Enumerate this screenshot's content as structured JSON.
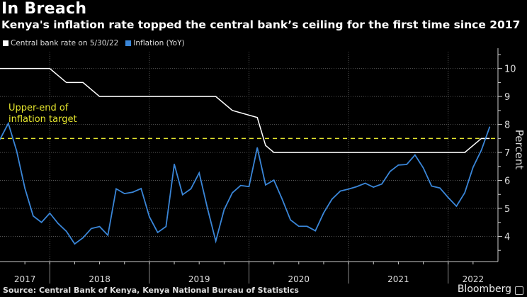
{
  "title": "In Breach",
  "subtitle": "Kenya's inflation rate topped the central bank’s ceiling for the first time since 2017",
  "source": "Source: Central Bank of Kenya, Kenya National Bureau of Statistics",
  "brand": "Bloomberg",
  "chart_data": {
    "type": "line",
    "title": "In Breach",
    "ylabel": "Percent",
    "ylim": [
      3.1,
      10.6
    ],
    "yticks": [
      4,
      5,
      6,
      7,
      8,
      9,
      10
    ],
    "xlim": [
      "2017-07",
      "2022-07"
    ],
    "xtick_labels": [
      "2017",
      "2018",
      "2019",
      "2020",
      "2021",
      "2022"
    ],
    "grid": true,
    "legend_position": "top-left",
    "annotation": {
      "text_line1": "Upper-end of",
      "text_line2": "inflation target",
      "value": 7.5,
      "color": "#e6e62e"
    },
    "series": [
      {
        "name": "Central bank rate on 5/30/22",
        "color": "#ffffff",
        "points": [
          [
            "2017-07",
            10
          ],
          [
            "2018-01",
            10
          ],
          [
            "2018-03",
            9.5
          ],
          [
            "2018-05",
            9.5
          ],
          [
            "2018-07",
            9.0
          ],
          [
            "2019-09",
            9.0
          ],
          [
            "2019-11",
            8.5
          ],
          [
            "2020-02",
            8.25
          ],
          [
            "2020-03",
            7.25
          ],
          [
            "2020-04",
            7.0
          ],
          [
            "2022-03",
            7.0
          ],
          [
            "2022-05",
            7.5
          ],
          [
            "2022-06",
            7.5
          ]
        ]
      },
      {
        "name": "Inflation (YoY)",
        "color": "#3a86d8",
        "start": "2017-07",
        "values": [
          7.47,
          8.04,
          7.06,
          5.72,
          4.73,
          4.5,
          4.83,
          4.46,
          4.18,
          3.73,
          3.95,
          4.28,
          4.35,
          4.04,
          5.7,
          5.53,
          5.58,
          5.71,
          4.7,
          4.14,
          4.35,
          6.58,
          5.49,
          5.7,
          6.27,
          5.0,
          3.83,
          4.95,
          5.56,
          5.82,
          5.78,
          7.17,
          5.84,
          6.01,
          5.33,
          4.59,
          4.36,
          4.36,
          4.2,
          4.84,
          5.33,
          5.62,
          5.69,
          5.78,
          5.9,
          5.76,
          5.87,
          6.32,
          6.55,
          6.57,
          6.91,
          6.45,
          5.8,
          5.73,
          5.39,
          5.08,
          5.56,
          6.47,
          7.08,
          7.91
        ]
      }
    ]
  }
}
